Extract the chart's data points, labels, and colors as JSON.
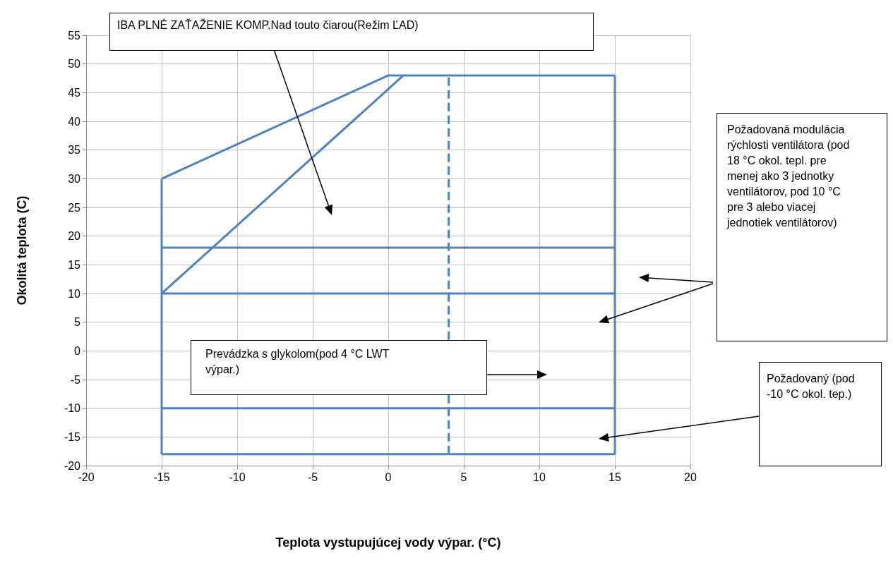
{
  "chart_data": {
    "type": "line",
    "xlabel": "Teplota vystupujúcej vody výpar. (°C)",
    "ylabel": "Okolitá teplota (C)",
    "xlim": [
      -20,
      20
    ],
    "xticks": [
      -20,
      -15,
      -10,
      -5,
      0,
      5,
      10,
      15,
      20
    ],
    "ylim": [
      -20,
      55
    ],
    "yticks": [
      -20,
      -15,
      -10,
      -5,
      0,
      5,
      10,
      15,
      20,
      25,
      30,
      35,
      40,
      45,
      50,
      55
    ],
    "grid": true,
    "marker": "none",
    "series": [
      {
        "color": "#4f81bd",
        "x": [
          -15,
          0,
          15
        ],
        "values": [
          30,
          48,
          48
        ]
      },
      {
        "color": "#4f81bd",
        "x": [
          -15,
          -15
        ],
        "values": [
          -18,
          30
        ]
      },
      {
        "color": "#4f81bd",
        "x": [
          15,
          15
        ],
        "values": [
          -18,
          48
        ]
      },
      {
        "color": "#4f81bd",
        "x": [
          -15,
          15
        ],
        "values": [
          -18,
          -18
        ]
      },
      {
        "color": "#4f81bd",
        "x": [
          -15,
          1
        ],
        "values": [
          10,
          48
        ]
      },
      {
        "color": "#4f81bd",
        "x": [
          -15,
          15
        ],
        "values": [
          18,
          18
        ]
      },
      {
        "color": "#4f81bd",
        "x": [
          -15,
          15
        ],
        "values": [
          10,
          10
        ]
      },
      {
        "color": "#4f81bd",
        "x": [
          -15,
          15
        ],
        "values": [
          -10,
          -10
        ]
      },
      {
        "color": "#4f81bd",
        "x": [
          4,
          4
        ],
        "values": [
          -18,
          48
        ],
        "line_style": "dashed"
      }
    ],
    "annotations": [
      "IBA PLNÉ ZAŤAŽENIE KOMP.Nad touto čiarou(Režim ĽAD)",
      "Požadovaná modulácia rýchlosti ventilátora (pod 18 °C okol. tepl. pre menej ako 3 jednotky ventilátorov, pod 10 °C pre 3 alebo viacej jednotiek ventilátorov)",
      "Prevádzka s glykolom(pod 4 °C LWT výpar.)",
      "Požadovaný (pod -10 °C okol. tep.)"
    ]
  }
}
